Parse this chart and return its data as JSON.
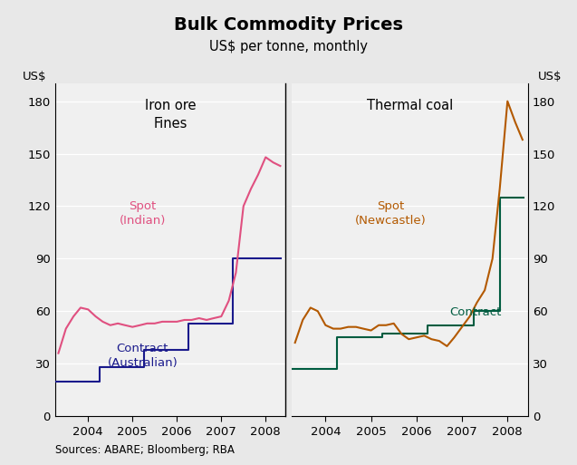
{
  "title": "Bulk Commodity Prices",
  "subtitle": "US$ per tonne, monthly",
  "ylabel_left": "US$",
  "ylabel_right": "US$",
  "source": "Sources: ABARE; Bloomberg; RBA",
  "ylim": [
    0,
    190
  ],
  "yticks": [
    0,
    30,
    60,
    90,
    120,
    150,
    180
  ],
  "background_color": "#e8e8e8",
  "plot_background": "#f0f0f0",
  "iron_ore_label": "Iron ore\nFines",
  "thermal_coal_label": "Thermal coal",
  "spot_indian_label": "Spot\n(Indian)",
  "contract_australian_label": "Contract\n(Australian)",
  "spot_newcastle_label": "Spot\n(Newcastle)",
  "contract_thermal_label": "Contract",
  "spot_indian_color": "#e05080",
  "contract_australian_color": "#1a1a8c",
  "spot_newcastle_color": "#b35900",
  "contract_thermal_color": "#005c40",
  "iron_ore_contract_x": [
    2003.25,
    2004.25,
    2004.25,
    2005.25,
    2005.25,
    2006.25,
    2006.25,
    2007.25,
    2007.25,
    2008.35
  ],
  "iron_ore_contract_y": [
    20,
    20,
    28,
    28,
    38,
    38,
    53,
    53,
    90,
    90
  ],
  "iron_ore_spot_x": [
    2003.33,
    2003.5,
    2003.67,
    2003.83,
    2004.0,
    2004.17,
    2004.33,
    2004.5,
    2004.67,
    2004.83,
    2005.0,
    2005.17,
    2005.33,
    2005.5,
    2005.67,
    2005.83,
    2006.0,
    2006.17,
    2006.33,
    2006.5,
    2006.67,
    2006.83,
    2007.0,
    2007.17,
    2007.33,
    2007.5,
    2007.67,
    2007.83,
    2008.0,
    2008.17,
    2008.33
  ],
  "iron_ore_spot_y": [
    36,
    50,
    57,
    62,
    61,
    57,
    54,
    52,
    53,
    52,
    51,
    52,
    53,
    53,
    54,
    54,
    54,
    55,
    55,
    56,
    55,
    56,
    57,
    66,
    82,
    120,
    130,
    138,
    148,
    145,
    143
  ],
  "thermal_coal_contract_x": [
    2003.25,
    2004.25,
    2004.25,
    2005.25,
    2005.25,
    2006.25,
    2006.25,
    2007.25,
    2007.25,
    2007.83,
    2007.83,
    2008.35
  ],
  "thermal_coal_contract_y": [
    27,
    27,
    45,
    45,
    47,
    47,
    52,
    52,
    60,
    60,
    125,
    125
  ],
  "thermal_coal_spot_x": [
    2003.33,
    2003.5,
    2003.67,
    2003.83,
    2004.0,
    2004.17,
    2004.33,
    2004.5,
    2004.67,
    2004.83,
    2005.0,
    2005.17,
    2005.33,
    2005.5,
    2005.67,
    2005.83,
    2006.0,
    2006.17,
    2006.33,
    2006.5,
    2006.67,
    2006.83,
    2007.0,
    2007.17,
    2007.33,
    2007.5,
    2007.67,
    2007.83,
    2008.0,
    2008.17,
    2008.33
  ],
  "thermal_coal_spot_y": [
    42,
    55,
    62,
    60,
    52,
    50,
    50,
    51,
    51,
    50,
    49,
    52,
    52,
    53,
    47,
    44,
    45,
    46,
    44,
    43,
    40,
    45,
    51,
    57,
    65,
    72,
    90,
    130,
    180,
    168,
    158
  ]
}
